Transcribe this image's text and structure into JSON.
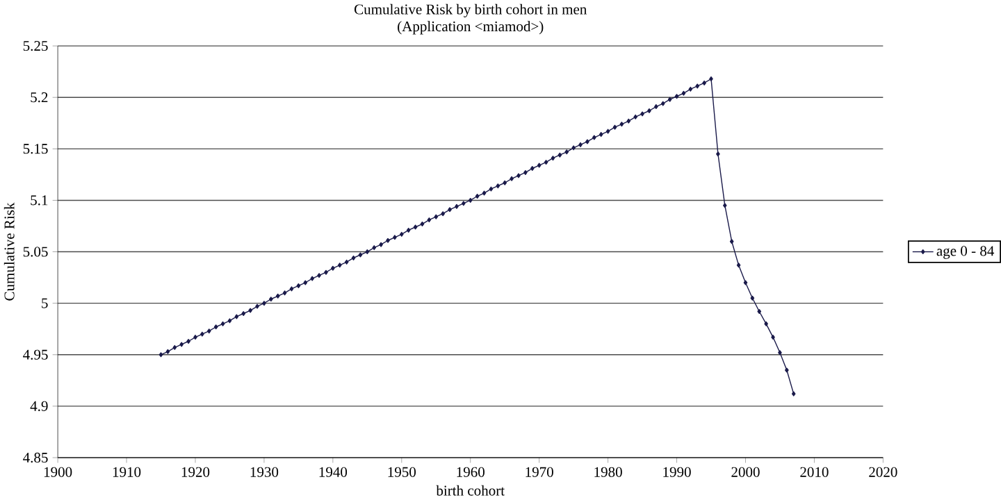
{
  "chart_data": {
    "type": "line",
    "title": "Cumulative Risk by birth cohort in men",
    "subtitle": "(Application <miamod>)",
    "xlabel": "birth cohort",
    "ylabel": "Cumulative Risk",
    "xlim": [
      1900,
      2020
    ],
    "xticks": [
      1900,
      1910,
      1920,
      1930,
      1940,
      1950,
      1960,
      1970,
      1980,
      1990,
      2000,
      2010,
      2020
    ],
    "ylim": [
      4.85,
      5.25
    ],
    "yticks": [
      4.85,
      4.9,
      4.95,
      5,
      5.05,
      5.1,
      5.15,
      5.2,
      5.25
    ],
    "grid": "y",
    "legend": "right",
    "marker": "diamond",
    "line_style": "solid",
    "series": [
      {
        "name": "age 0 - 84",
        "color": "#1a1a4a",
        "x": [
          1915,
          1916,
          1917,
          1918,
          1919,
          1920,
          1921,
          1922,
          1923,
          1924,
          1925,
          1926,
          1927,
          1928,
          1929,
          1930,
          1931,
          1932,
          1933,
          1934,
          1935,
          1936,
          1937,
          1938,
          1939,
          1940,
          1941,
          1942,
          1943,
          1944,
          1945,
          1946,
          1947,
          1948,
          1949,
          1950,
          1951,
          1952,
          1953,
          1954,
          1955,
          1956,
          1957,
          1958,
          1959,
          1960,
          1961,
          1962,
          1963,
          1964,
          1965,
          1966,
          1967,
          1968,
          1969,
          1970,
          1971,
          1972,
          1973,
          1974,
          1975,
          1976,
          1977,
          1978,
          1979,
          1980,
          1981,
          1982,
          1983,
          1984,
          1985,
          1986,
          1987,
          1988,
          1989,
          1990,
          1991,
          1992,
          1993,
          1994,
          1995,
          1996,
          1997,
          1998,
          1999,
          2000,
          2001,
          2002,
          2003,
          2004,
          2005,
          2006,
          2007
        ],
        "values": [
          4.95,
          4.953,
          4.957,
          4.96,
          4.963,
          4.967,
          4.97,
          4.973,
          4.977,
          4.98,
          4.983,
          4.987,
          4.99,
          4.993,
          4.997,
          5.0,
          5.004,
          5.007,
          5.01,
          5.014,
          5.017,
          5.02,
          5.024,
          5.027,
          5.03,
          5.034,
          5.037,
          5.04,
          5.044,
          5.047,
          5.05,
          5.054,
          5.057,
          5.061,
          5.064,
          5.067,
          5.071,
          5.074,
          5.077,
          5.081,
          5.084,
          5.087,
          5.091,
          5.094,
          5.097,
          5.1,
          5.104,
          5.107,
          5.111,
          5.114,
          5.117,
          5.121,
          5.124,
          5.127,
          5.131,
          5.134,
          5.137,
          5.141,
          5.144,
          5.147,
          5.151,
          5.154,
          5.157,
          5.161,
          5.164,
          5.167,
          5.171,
          5.174,
          5.177,
          5.181,
          5.184,
          5.187,
          5.191,
          5.194,
          5.198,
          5.201,
          5.204,
          5.208,
          5.211,
          5.214,
          5.218,
          5.145,
          5.095,
          5.06,
          5.037,
          5.02,
          5.005,
          4.992,
          4.98,
          4.967,
          4.952,
          4.935,
          4.912
        ]
      }
    ]
  }
}
